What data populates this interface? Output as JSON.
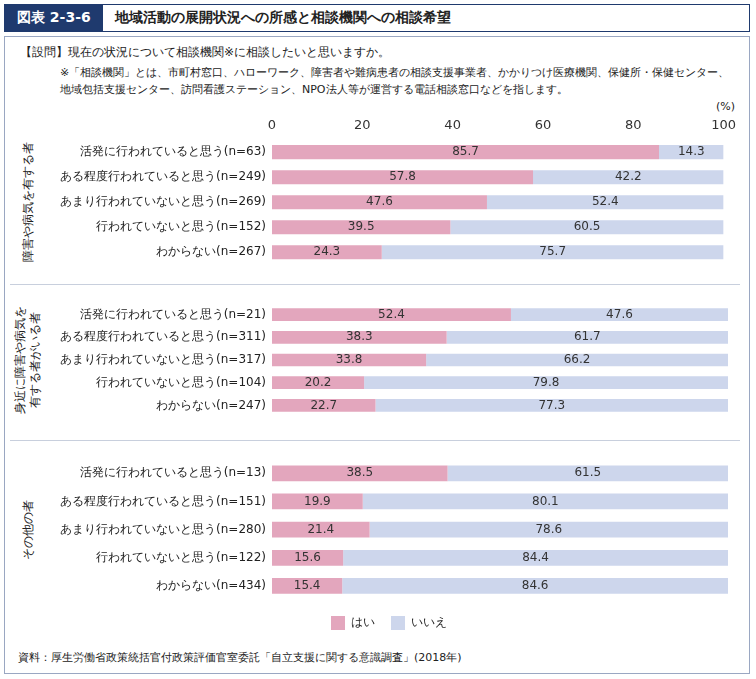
{
  "figure_number": "図表 2-3-6",
  "figure_title": "地域活動の展開状況への所感と相談機関への相談希望",
  "question": "【設問】現在の状況について相談機関※に相談したいと思いますか。",
  "note": "※「相談機関」とは、市町村窓口、ハローワーク、障害者や難病患者の相談支援事業者、かかりつけ医療機関、保健所・保健センター、地域包括支援センター、訪問看護ステーション、NPO法人等が運営する電話相談窓口などを指します。",
  "unit": "(%)",
  "source": "資料：厚生労働省政策統括官付政策評価官室委託「自立支援に関する意識調査」(2018年)",
  "chart_data": [
    {
      "type": "bar",
      "title": "障害や病気を有する者",
      "categories": [
        "活発に行われていると思う(n=63)",
        "ある程度行われていると思う(n=249)",
        "あまり行われていないと思う(n=269)",
        "行われていないと思う(n=152)",
        "わからない(n=267)"
      ],
      "series": [
        {
          "name": "はい",
          "color": "#e3a6bd",
          "values": [
            85.7,
            57.8,
            47.6,
            39.5,
            24.3
          ]
        },
        {
          "name": "いいえ",
          "color": "#cdd6ec",
          "values": [
            14.3,
            42.2,
            52.4,
            60.5,
            75.7
          ]
        }
      ],
      "orientation": "horizontal",
      "stacked": true,
      "data_labels": true,
      "grid": false,
      "xlim": [
        0,
        100
      ],
      "xticks": [
        0,
        20,
        40,
        60,
        80,
        100
      ]
    },
    {
      "type": "bar",
      "title": "身近に障害や病気を有する者がいる者",
      "categories": [
        "活発に行われていると思う(n=21)",
        "ある程度行われていると思う(n=311)",
        "あまり行われていないと思う(n=317)",
        "行われていないと思う(n=104)",
        "わからない(n=247)"
      ],
      "series": [
        {
          "name": "はい",
          "color": "#e3a6bd",
          "values": [
            52.4,
            38.3,
            33.8,
            20.2,
            22.7
          ]
        },
        {
          "name": "いいえ",
          "color": "#cdd6ec",
          "values": [
            47.6,
            61.7,
            66.2,
            79.8,
            77.3
          ]
        }
      ],
      "orientation": "horizontal",
      "stacked": true,
      "data_labels": true,
      "grid": false,
      "xlim": [
        0,
        100
      ],
      "tick_labels": "y"
    },
    {
      "type": "bar",
      "title": "その他の者",
      "categories": [
        "活発に行われていると思う(n=13)",
        "ある程度行われていると思う(n=151)",
        "あまり行われていないと思う(n=280)",
        "行われていないと思う(n=122)",
        "わからない(n=434)"
      ],
      "series": [
        {
          "name": "はい",
          "color": "#e3a6bd",
          "values": [
            38.5,
            19.9,
            21.4,
            15.6,
            15.4
          ]
        },
        {
          "name": "いいえ",
          "color": "#cdd6ec",
          "values": [
            61.5,
            80.1,
            78.6,
            84.4,
            84.6
          ]
        }
      ],
      "orientation": "horizontal",
      "stacked": true,
      "data_labels": true,
      "grid": false,
      "xlim": [
        0,
        100
      ],
      "tick_labels": "y",
      "legend": "bottom"
    }
  ]
}
